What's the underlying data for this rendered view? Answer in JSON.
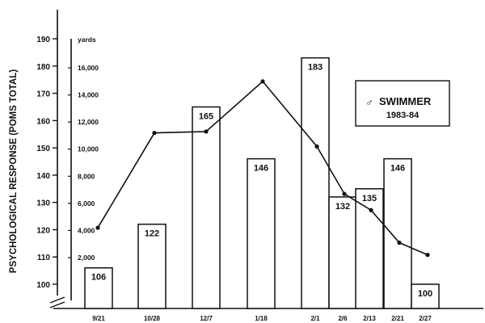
{
  "chart_data": {
    "type": "bar+line",
    "ylabel": "PSYCHOLOGICAL RESPONSE (POMS TOTAL)",
    "y2label": "yards",
    "ylim": [
      100,
      190
    ],
    "y_ticks": [
      100,
      110,
      120,
      130,
      140,
      150,
      160,
      170,
      180,
      190
    ],
    "y2lim": [
      0,
      16000
    ],
    "y2_ticks": [
      "2,000",
      "4,000",
      "6,000",
      "8,000",
      "10,000",
      "12,000",
      "14,000",
      "16,000"
    ],
    "y2_tick_values": [
      2000,
      4000,
      6000,
      8000,
      10000,
      12000,
      14000,
      16000
    ],
    "categories": [
      "9/21",
      "10/28",
      "12/7",
      "1/18",
      "2/1",
      "2/6",
      "2/13",
      "2/21",
      "2/27"
    ],
    "bars": {
      "name": "POMS total",
      "values": [
        106,
        122,
        165,
        146,
        183,
        132,
        135,
        146,
        100
      ]
    },
    "line": {
      "name": "yards",
      "values": [
        4200,
        11200,
        11300,
        15000,
        10200,
        6700,
        5500,
        3100,
        2200
      ]
    },
    "legend": {
      "symbol": "♂",
      "title": "SWIMMER",
      "subtitle": "1983-84",
      "placement": "top-right"
    },
    "grid": false,
    "axis_break": true
  }
}
